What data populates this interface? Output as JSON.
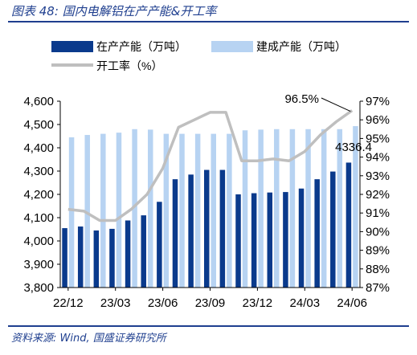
{
  "figure": {
    "title": "图表 48:  国内电解铝在产产能&开工率",
    "source": "资料来源:  Wind,  国盛证券研究所"
  },
  "colors": {
    "title_blue": "#1F3F8F",
    "series_in_production": "#0A3A8C",
    "series_built": "#B7D3F2",
    "series_utilization": "#BFBFBF"
  },
  "chart_data": {
    "type": "bar",
    "categories": [
      "22/12",
      "23/01",
      "23/02",
      "23/03",
      "23/04",
      "23/05",
      "23/06",
      "23/07",
      "23/08",
      "23/09",
      "23/10",
      "23/11",
      "23/12",
      "24/01",
      "24/02",
      "24/03",
      "24/04",
      "24/05",
      "24/06"
    ],
    "x_tick_labels": [
      "22/12",
      "23/03",
      "23/06",
      "23/09",
      "23/12",
      "24/03",
      "24/06"
    ],
    "series": [
      {
        "name": "在产产能（万吨）",
        "type": "bar",
        "axis": "left",
        "values": [
          4055,
          4062,
          4045,
          4052,
          4088,
          4110,
          4168,
          4265,
          4285,
          4305,
          4305,
          4200,
          4205,
          4208,
          4210,
          4225,
          4265,
          4298,
          4336.4
        ]
      },
      {
        "name": "建成产能（万吨）",
        "type": "bar",
        "axis": "left",
        "values": [
          4445,
          4455,
          4460,
          4465,
          4480,
          4478,
          4460,
          4460,
          4460,
          4460,
          4460,
          4475,
          4478,
          4480,
          4480,
          4480,
          4480,
          4480,
          4493
        ]
      },
      {
        "name": "开工率（%）",
        "type": "line",
        "axis": "right",
        "values": [
          91.2,
          91.1,
          90.6,
          90.6,
          91.2,
          92.0,
          93.4,
          95.6,
          96.0,
          96.4,
          96.4,
          93.8,
          93.8,
          93.9,
          93.8,
          94.3,
          95.2,
          95.9,
          96.5
        ]
      }
    ],
    "left_axis": {
      "ylim": [
        3800,
        4600
      ],
      "ticks": [
        "3,800",
        "3,900",
        "4,000",
        "4,100",
        "4,200",
        "4,300",
        "4,400",
        "4,500",
        "4,600"
      ]
    },
    "right_axis": {
      "ylim": [
        87,
        97
      ],
      "ticks": [
        "87%",
        "88%",
        "89%",
        "90%",
        "91%",
        "92%",
        "93%",
        "94%",
        "95%",
        "96%",
        "97%"
      ]
    },
    "annotations": [
      {
        "text": "96.5%",
        "series": "开工率（%）",
        "point": "24/06"
      },
      {
        "text": "4336.4",
        "series": "在产产能（万吨）",
        "point": "24/06"
      }
    ],
    "legend": {
      "placement": "top",
      "items": [
        "在产产能（万吨）",
        "建成产能（万吨）",
        "开工率（%）"
      ]
    },
    "grid": false
  }
}
